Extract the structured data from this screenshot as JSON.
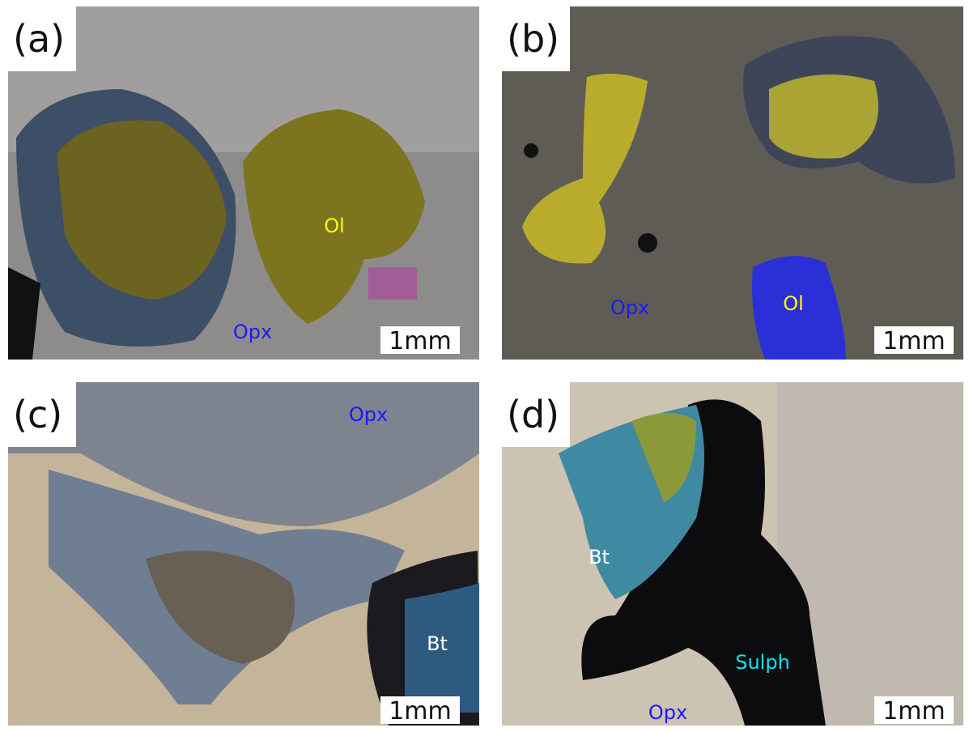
{
  "panels": [
    {
      "label": "(a)",
      "scale": "1mm",
      "annotations": [
        {
          "text": "Ol",
          "color": "#ffff00"
        },
        {
          "text": "Opx",
          "color": "#1a1aff"
        }
      ]
    },
    {
      "label": "(b)",
      "scale": "1mm",
      "annotations": [
        {
          "text": "Opx",
          "color": "#1a1aff"
        },
        {
          "text": "Ol",
          "color": "#ffff00"
        }
      ]
    },
    {
      "label": "(c)",
      "scale": "1mm",
      "annotations": [
        {
          "text": "Opx",
          "color": "#1a1aff"
        },
        {
          "text": "Bt",
          "color": "#ffffff"
        }
      ]
    },
    {
      "label": "(d)",
      "scale": "1mm",
      "annotations": [
        {
          "text": "Bt",
          "color": "#ffffff"
        },
        {
          "text": "Sulph",
          "color": "#00e5ff"
        },
        {
          "text": "Opx",
          "color": "#1a1aff"
        }
      ]
    }
  ]
}
